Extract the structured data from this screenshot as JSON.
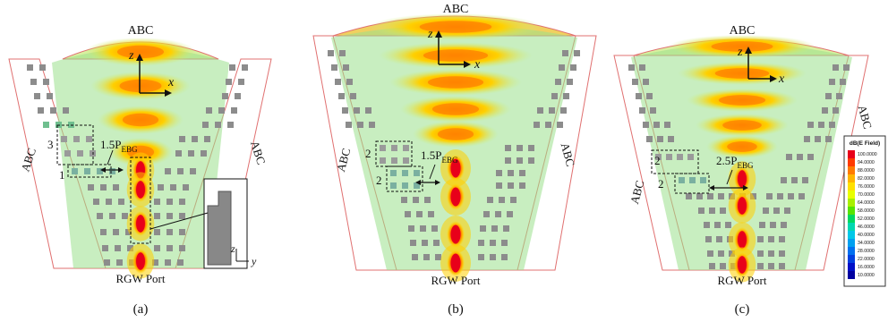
{
  "panels": [
    {
      "id": "a",
      "caption": "(a)",
      "top_label": "ABC",
      "left_label": "ABC",
      "right_label": "ABC",
      "bottom_label": "RGW Port",
      "axis_z": "z",
      "axis_x": "x",
      "spacing_main": "1.5P",
      "spacing_sub": "EBG",
      "count_upper": "3",
      "count_lower": "1",
      "inset_axis_z": "z",
      "inset_axis_y": "y"
    },
    {
      "id": "b",
      "caption": "(b)",
      "top_label": "ABC",
      "left_label": "ABC",
      "right_label": "ABC",
      "bottom_label": "RGW Port",
      "axis_z": "z",
      "axis_x": "x",
      "spacing_main": "1.5P",
      "spacing_sub": "EBG",
      "count_upper": "2",
      "count_lower": "2"
    },
    {
      "id": "c",
      "caption": "(c)",
      "top_label": "ABC",
      "left_label": "ABC",
      "right_label": "ABC",
      "bottom_label": "RGW Port",
      "axis_z": "z",
      "axis_x": "x",
      "spacing_main": "2.5P",
      "spacing_sub": "EBG",
      "count_upper": "2",
      "count_lower": "2"
    }
  ],
  "legend": {
    "title": "dB(E Field)",
    "ticks": [
      "100.0000",
      "94.0000",
      "88.0000",
      "82.0000",
      "76.0000",
      "70.0000",
      "64.0000",
      "58.0000",
      "52.0000",
      "46.0000",
      "40.0000",
      "34.0000",
      "28.0000",
      "22.0000",
      "16.0000",
      "10.0000"
    ],
    "colors": [
      "#e8001a",
      "#ff3a00",
      "#ff7a00",
      "#ffb400",
      "#ffe000",
      "#e8ff00",
      "#a8f000",
      "#56e400",
      "#00d860",
      "#00d8b0",
      "#00c8e8",
      "#00a0f0",
      "#0070f0",
      "#0040e0",
      "#0010c8",
      "#0000a0"
    ]
  }
}
